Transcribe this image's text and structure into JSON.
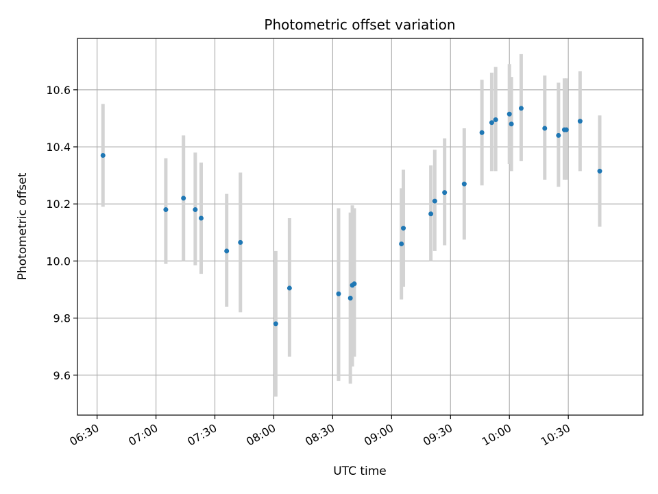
{
  "chart_data": {
    "type": "scatter",
    "title": "Photometric offset variation",
    "xlabel": "UTC time",
    "ylabel": "Photometric offset",
    "xlim": [
      "06:20",
      "11:08"
    ],
    "ylim": [
      9.46,
      10.78
    ],
    "grid": true,
    "point_color": "#1f77b4",
    "errorbar_color": "#d3d3d3",
    "x_ticks": [
      "06:30",
      "07:00",
      "07:30",
      "08:00",
      "08:30",
      "09:00",
      "09:30",
      "10:00",
      "10:30"
    ],
    "y_ticks": [
      9.6,
      9.8,
      10.0,
      10.2,
      10.4,
      10.6
    ],
    "y_tick_labels": [
      "9.6",
      "9.8",
      "10.0",
      "10.2",
      "10.4",
      "10.6"
    ],
    "points": [
      {
        "x": "06:33",
        "y": 10.37,
        "err_low": 10.19,
        "err_high": 10.55
      },
      {
        "x": "07:05",
        "y": 10.18,
        "err_low": 9.99,
        "err_high": 10.36
      },
      {
        "x": "07:14",
        "y": 10.22,
        "err_low": 10.0,
        "err_high": 10.44
      },
      {
        "x": "07:20",
        "y": 10.18,
        "err_low": 9.985,
        "err_high": 10.38
      },
      {
        "x": "07:23",
        "y": 10.15,
        "err_low": 9.955,
        "err_high": 10.345
      },
      {
        "x": "07:36",
        "y": 10.035,
        "err_low": 9.84,
        "err_high": 10.235
      },
      {
        "x": "07:43",
        "y": 10.065,
        "err_low": 9.82,
        "err_high": 10.31
      },
      {
        "x": "08:01",
        "y": 9.78,
        "err_low": 9.525,
        "err_high": 10.035
      },
      {
        "x": "08:08",
        "y": 9.905,
        "err_low": 9.665,
        "err_high": 10.15
      },
      {
        "x": "08:33",
        "y": 9.885,
        "err_low": 9.58,
        "err_high": 10.185
      },
      {
        "x": "08:39",
        "y": 9.87,
        "err_low": 9.57,
        "err_high": 10.17
      },
      {
        "x": "08:40",
        "y": 9.915,
        "err_low": 9.63,
        "err_high": 10.195
      },
      {
        "x": "08:41",
        "y": 9.92,
        "err_low": 9.665,
        "err_high": 10.185
      },
      {
        "x": "09:05",
        "y": 10.06,
        "err_low": 9.865,
        "err_high": 10.255
      },
      {
        "x": "09:06",
        "y": 10.115,
        "err_low": 9.91,
        "err_high": 10.32
      },
      {
        "x": "09:20",
        "y": 10.165,
        "err_low": 10.0,
        "err_high": 10.335
      },
      {
        "x": "09:22",
        "y": 10.21,
        "err_low": 10.035,
        "err_high": 10.39
      },
      {
        "x": "09:27",
        "y": 10.24,
        "err_low": 10.055,
        "err_high": 10.43
      },
      {
        "x": "09:37",
        "y": 10.27,
        "err_low": 10.075,
        "err_high": 10.465
      },
      {
        "x": "09:46",
        "y": 10.45,
        "err_low": 10.265,
        "err_high": 10.635
      },
      {
        "x": "09:51",
        "y": 10.485,
        "err_low": 10.315,
        "err_high": 10.66
      },
      {
        "x": "09:53",
        "y": 10.495,
        "err_low": 10.315,
        "err_high": 10.68
      },
      {
        "x": "10:00",
        "y": 10.515,
        "err_low": 10.34,
        "err_high": 10.69
      },
      {
        "x": "10:01",
        "y": 10.48,
        "err_low": 10.315,
        "err_high": 10.645
      },
      {
        "x": "10:06",
        "y": 10.535,
        "err_low": 10.35,
        "err_high": 10.725
      },
      {
        "x": "10:18",
        "y": 10.465,
        "err_low": 10.285,
        "err_high": 10.65
      },
      {
        "x": "10:25",
        "y": 10.44,
        "err_low": 10.26,
        "err_high": 10.625
      },
      {
        "x": "10:28",
        "y": 10.46,
        "err_low": 10.285,
        "err_high": 10.64
      },
      {
        "x": "10:29",
        "y": 10.46,
        "err_low": 10.285,
        "err_high": 10.64
      },
      {
        "x": "10:36",
        "y": 10.49,
        "err_low": 10.315,
        "err_high": 10.665
      },
      {
        "x": "10:46",
        "y": 10.315,
        "err_low": 10.12,
        "err_high": 10.51
      }
    ]
  }
}
